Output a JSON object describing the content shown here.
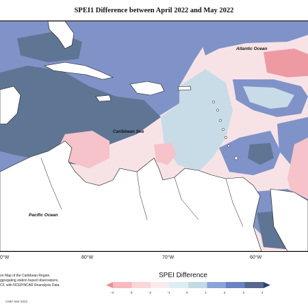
{
  "title": "SPEI1 Difference between April 2022 and May 2022",
  "map": {
    "labels": {
      "atlantic": "Atlantic Ocean",
      "caribbean": "Caribbean Sea",
      "pacific": "Pacific Ocean"
    },
    "longitude_labels": [
      "0°W",
      "80°W",
      "70°W",
      "60°W"
    ]
  },
  "credits": [
    "on Map of the Caribbean Region.",
    "ggregating station based observations.",
    "CF, with NCEP/NCAR Reanalysis Data."
  ],
  "stamp": "CIMH Mar-2023",
  "legend": {
    "title": "SPEI Difference",
    "ticks": [
      "-4",
      "-3",
      "-2",
      "-1",
      "0",
      "1",
      "2",
      "3",
      "4"
    ],
    "colors": [
      "#f08d93",
      "#f7b9bd",
      "#f9d6d9",
      "#fbeaec",
      "#ddeef3",
      "#c2dae3",
      "#8ca3da",
      "#6a82c4",
      "#55688f",
      "#2f3f7a"
    ]
  },
  "palette": {
    "land": "#ffffff",
    "dark_blue": "#5f7594",
    "mid_blue": "#7f93c8",
    "light_blue": "#c7dce6",
    "light_pink": "#f7e3e6",
    "pink": "#f5c3c9",
    "salmon": "#ee9aa2"
  }
}
